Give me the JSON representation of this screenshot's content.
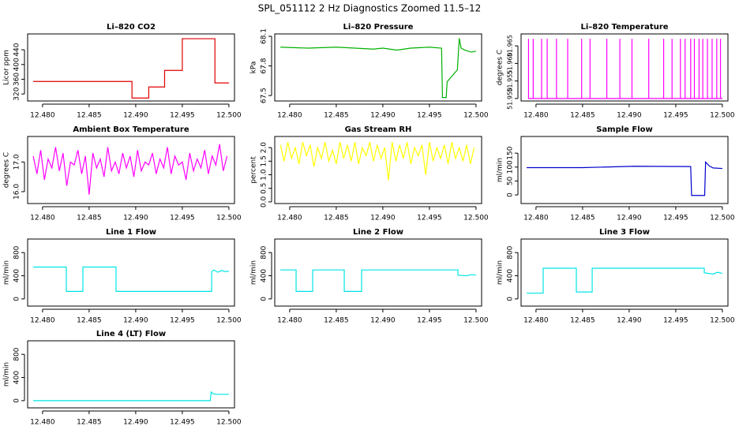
{
  "title": "SPL_051112  2 Hz Diagnostics Zoomed 11.5–12",
  "chart_data": [
    {
      "type": "line",
      "title": "Li–820 CO2",
      "ylabel": "Licor ppm",
      "color": "#e00000",
      "x": [
        12.479,
        12.4896,
        12.4896,
        12.4914,
        12.4914,
        12.4931,
        12.4931,
        12.495,
        12.495,
        12.4985,
        12.4985,
        12.5
      ],
      "values": [
        354,
        354,
        309,
        309,
        339,
        339,
        384,
        384,
        470,
        470,
        350,
        350
      ],
      "xlim": [
        12.4784,
        12.5006
      ],
      "xticks": [
        {
          "value": 12.48,
          "label": "12.480"
        },
        {
          "value": 12.485,
          "label": "12.485"
        },
        {
          "value": 12.49,
          "label": "12.490"
        },
        {
          "value": 12.495,
          "label": "12.495"
        },
        {
          "value": 12.5,
          "label": "12.500"
        }
      ],
      "ylim": [
        301,
        483
      ],
      "yticks": [
        320,
        360,
        400,
        440
      ]
    },
    {
      "type": "line",
      "title": "Li–820 Pressure",
      "ylabel": "kPa",
      "color": "#00b000",
      "x": [
        12.479,
        12.482,
        12.485,
        12.487,
        12.489,
        12.49,
        12.4915,
        12.493,
        12.495,
        12.4963,
        12.4964,
        12.4965,
        12.4968,
        12.4969,
        12.498,
        12.4982,
        12.4984,
        12.4988,
        12.4995,
        12.5
      ],
      "values": [
        67.99,
        67.98,
        67.99,
        67.98,
        67.97,
        67.98,
        67.96,
        67.98,
        67.99,
        67.98,
        67.48,
        67.48,
        67.48,
        67.64,
        67.76,
        68.08,
        67.98,
        67.96,
        67.94,
        67.95
      ],
      "xlim": [
        12.4784,
        12.5006
      ],
      "xticks": [
        {
          "value": 12.48,
          "label": "12.480"
        },
        {
          "value": 12.485,
          "label": "12.485"
        },
        {
          "value": 12.49,
          "label": "12.490"
        },
        {
          "value": 12.495,
          "label": "12.495"
        },
        {
          "value": 12.5,
          "label": "12.500"
        }
      ],
      "ylim": [
        67.445,
        68.124
      ],
      "yticks": [
        67.5,
        67.8,
        68.1
      ]
    },
    {
      "type": "line",
      "title": "Li–820 Temperature",
      "ylabel": "degrees C",
      "color": "#ff00ff",
      "x": [
        12.4792,
        12.4792,
        12.4792,
        12.4797,
        12.4797,
        12.4797,
        12.4806,
        12.4806,
        12.4806,
        12.4812,
        12.4812,
        12.4812,
        12.4822,
        12.4822,
        12.4822,
        12.4834,
        12.4834,
        12.4834,
        12.4849,
        12.4849,
        12.4849,
        12.4858,
        12.4858,
        12.4858,
        12.4876,
        12.4876,
        12.4876,
        12.489,
        12.489,
        12.489,
        12.4903,
        12.4903,
        12.4903,
        12.4921,
        12.4921,
        12.4921,
        12.4937,
        12.4937,
        12.4937,
        12.4946,
        12.4946,
        12.4946,
        12.4955,
        12.4955,
        12.4955,
        12.496,
        12.496,
        12.496,
        12.4966,
        12.4966,
        12.4966,
        12.497,
        12.497,
        12.497,
        12.4975,
        12.4975,
        12.4975,
        12.4979,
        12.4979,
        12.4979,
        12.4984,
        12.4984,
        12.4984,
        12.4989,
        12.4989,
        12.4989,
        12.4994,
        12.4994,
        12.4994,
        12.4998,
        12.4998,
        12.4998,
        12.5
      ],
      "values": [
        51.95,
        51.967,
        51.95,
        51.95,
        51.967,
        51.95,
        51.95,
        51.967,
        51.95,
        51.95,
        51.967,
        51.95,
        51.95,
        51.967,
        51.95,
        51.95,
        51.967,
        51.95,
        51.95,
        51.967,
        51.95,
        51.95,
        51.967,
        51.95,
        51.95,
        51.967,
        51.95,
        51.95,
        51.967,
        51.95,
        51.95,
        51.967,
        51.95,
        51.95,
        51.967,
        51.95,
        51.95,
        51.967,
        51.95,
        51.95,
        51.967,
        51.95,
        51.95,
        51.967,
        51.95,
        51.95,
        51.967,
        51.95,
        51.95,
        51.967,
        51.95,
        51.95,
        51.967,
        51.95,
        51.95,
        51.967,
        51.95,
        51.95,
        51.967,
        51.95,
        51.95,
        51.967,
        51.95,
        51.95,
        51.967,
        51.95,
        51.95,
        51.967,
        51.95,
        51.95,
        51.967,
        51.95,
        51.95
      ],
      "xlim": [
        12.4784,
        12.5006
      ],
      "xticks": [
        {
          "value": 12.48,
          "label": "12.480"
        },
        {
          "value": 12.485,
          "label": "12.485"
        },
        {
          "value": 12.49,
          "label": "12.490"
        },
        {
          "value": 12.495,
          "label": "12.495"
        },
        {
          "value": 12.5,
          "label": "12.500"
        }
      ],
      "ylim": [
        51.9493,
        51.9684
      ],
      "yticks": [
        {
          "value": 51.95,
          "label": "51.950"
        },
        51.955,
        {
          "value": 51.96,
          "label": "51.960"
        },
        51.965
      ]
    },
    {
      "type": "line",
      "title": "Ambient Box Temperature",
      "ylabel": "degrees C",
      "color": "#ff00ff",
      "x": [
        12.479,
        12.4794,
        12.4798,
        12.4802,
        12.4806,
        12.481,
        12.4814,
        12.4818,
        12.4822,
        12.4826,
        12.483,
        12.4834,
        12.4838,
        12.4842,
        12.4846,
        12.485,
        12.4854,
        12.4858,
        12.4862,
        12.4866,
        12.487,
        12.4874,
        12.4878,
        12.4882,
        12.4886,
        12.489,
        12.4894,
        12.4898,
        12.4902,
        12.4906,
        12.491,
        12.4914,
        12.4918,
        12.4922,
        12.4926,
        12.493,
        12.4934,
        12.4938,
        12.4942,
        12.4946,
        12.495,
        12.4954,
        12.4958,
        12.4962,
        12.4966,
        12.497,
        12.4974,
        12.4978,
        12.4982,
        12.4986,
        12.499,
        12.4994,
        12.4998
      ],
      "values": [
        17.2,
        16.6,
        17.4,
        16.4,
        17.1,
        16.8,
        17.5,
        16.7,
        17.3,
        16.2,
        17.0,
        16.9,
        17.4,
        16.6,
        17.2,
        15.9,
        17.3,
        16.8,
        17.1,
        16.5,
        17.5,
        16.7,
        17.0,
        16.6,
        17.3,
        16.8,
        17.2,
        16.5,
        17.4,
        16.7,
        17.0,
        16.9,
        17.3,
        16.6,
        17.1,
        16.8,
        17.5,
        16.6,
        17.2,
        16.9,
        17.0,
        16.4,
        17.3,
        16.7,
        17.1,
        16.8,
        17.4,
        16.6,
        17.2,
        16.9,
        17.6,
        16.7,
        17.2
      ],
      "xlim": [
        12.4784,
        12.5006
      ],
      "xticks": [
        {
          "value": 12.48,
          "label": "12.480"
        },
        {
          "value": 12.485,
          "label": "12.485"
        },
        {
          "value": 12.49,
          "label": "12.490"
        },
        {
          "value": 12.495,
          "label": "12.495"
        },
        {
          "value": 12.5,
          "label": "12.500"
        }
      ],
      "ylim": [
        15.6,
        17.86
      ],
      "yticks": [
        {
          "value": 16,
          "label": "16.0"
        },
        {
          "value": 17,
          "label": "17.0"
        }
      ]
    },
    {
      "type": "line",
      "title": "Gas Stream RH",
      "ylabel": "percent",
      "color": "#ffff00",
      "x": [
        12.479,
        12.4794,
        12.4798,
        12.4802,
        12.4806,
        12.481,
        12.4814,
        12.4818,
        12.4822,
        12.4826,
        12.483,
        12.4834,
        12.4838,
        12.4842,
        12.4846,
        12.485,
        12.4854,
        12.4858,
        12.4862,
        12.4866,
        12.487,
        12.4874,
        12.4878,
        12.4882,
        12.4886,
        12.489,
        12.4894,
        12.4898,
        12.4902,
        12.4906,
        12.491,
        12.4914,
        12.4918,
        12.4922,
        12.4926,
        12.493,
        12.4934,
        12.4938,
        12.4942,
        12.4946,
        12.495,
        12.4954,
        12.4958,
        12.4962,
        12.4966,
        12.497,
        12.4974,
        12.4978,
        12.4982,
        12.4986,
        12.499,
        12.4994,
        12.4998
      ],
      "values": [
        2.1,
        1.5,
        2.2,
        1.6,
        2.0,
        1.4,
        2.2,
        1.7,
        2.1,
        1.3,
        2.0,
        1.6,
        2.2,
        1.5,
        1.9,
        1.4,
        2.2,
        1.6,
        2.1,
        1.5,
        2.2,
        1.4,
        2.0,
        1.7,
        2.2,
        1.5,
        2.1,
        1.6,
        2.0,
        0.8,
        2.2,
        1.5,
        2.1,
        1.6,
        2.2,
        1.4,
        2.0,
        1.7,
        2.1,
        1.0,
        2.2,
        1.5,
        2.0,
        1.6,
        2.1,
        1.4,
        2.2,
        1.6,
        2.0,
        1.5,
        2.1,
        1.4,
        2.0
      ],
      "xlim": [
        12.4784,
        12.5006
      ],
      "xticks": [
        {
          "value": 12.48,
          "label": "12.480"
        },
        {
          "value": 12.485,
          "label": "12.485"
        },
        {
          "value": 12.49,
          "label": "12.490"
        },
        {
          "value": 12.495,
          "label": "12.495"
        },
        {
          "value": 12.5,
          "label": "12.500"
        }
      ],
      "ylim": [
        -0.06,
        2.41
      ],
      "yticks": [
        {
          "value": 0,
          "label": "0.0"
        },
        0.5,
        {
          "value": 1,
          "label": "1.0"
        },
        1.5,
        {
          "value": 2,
          "label": "2.0"
        }
      ]
    },
    {
      "type": "line",
      "title": "Sample Flow",
      "ylabel": "ml/min",
      "color": "#0000cc",
      "x": [
        12.479,
        12.485,
        12.4905,
        12.4966,
        12.4967,
        12.4981,
        12.4982,
        12.4986,
        12.499,
        12.5
      ],
      "values": [
        98,
        98,
        103,
        102,
        -2,
        -2,
        118,
        104,
        97,
        95
      ],
      "xlim": [
        12.4784,
        12.5006
      ],
      "xticks": [
        {
          "value": 12.48,
          "label": "12.480"
        },
        {
          "value": 12.485,
          "label": "12.485"
        },
        {
          "value": 12.49,
          "label": "12.490"
        },
        {
          "value": 12.495,
          "label": "12.495"
        },
        {
          "value": 12.5,
          "label": "12.500"
        }
      ],
      "ylim": [
        -31,
        210
      ],
      "yticks": [
        0,
        50,
        100,
        150
      ]
    },
    {
      "type": "line",
      "title": "Line 1 Flow",
      "ylabel": "ml/min",
      "color": "#00e5e5",
      "x": [
        12.479,
        12.48255,
        12.48255,
        12.48433,
        12.48433,
        12.48789,
        12.48789,
        12.49815,
        12.49815,
        12.4984,
        12.4988,
        12.4992,
        12.4996,
        12.5
      ],
      "values": [
        550,
        550,
        130,
        130,
        550,
        550,
        130,
        130,
        470,
        500,
        460,
        490,
        470,
        480
      ],
      "xlim": [
        12.4784,
        12.5006
      ],
      "xticks": [
        {
          "value": 12.48,
          "label": "12.480"
        },
        {
          "value": 12.485,
          "label": "12.485"
        },
        {
          "value": 12.49,
          "label": "12.490"
        },
        {
          "value": 12.495,
          "label": "12.495"
        },
        {
          "value": 12.5,
          "label": "12.500"
        }
      ],
      "ylim": [
        -124,
        1034
      ],
      "yticks": [
        0,
        400,
        800
      ]
    },
    {
      "type": "line",
      "title": "Line 2 Flow",
      "ylabel": "ml/min",
      "color": "#00e5e5",
      "x": [
        12.479,
        12.48069,
        12.48069,
        12.48247,
        12.48247,
        12.48586,
        12.48586,
        12.48772,
        12.48772,
        12.49806,
        12.49806,
        12.499,
        12.4995,
        12.5
      ],
      "values": [
        500,
        500,
        130,
        130,
        500,
        500,
        130,
        130,
        500,
        500,
        410,
        400,
        420,
        410
      ],
      "xlim": [
        12.4784,
        12.5006
      ],
      "xticks": [
        {
          "value": 12.48,
          "label": "12.480"
        },
        {
          "value": 12.485,
          "label": "12.485"
        },
        {
          "value": 12.49,
          "label": "12.490"
        },
        {
          "value": 12.495,
          "label": "12.495"
        },
        {
          "value": 12.5,
          "label": "12.500"
        }
      ],
      "ylim": [
        -124,
        1034
      ],
      "yticks": [
        0,
        400,
        800
      ]
    },
    {
      "type": "line",
      "title": "Line 3 Flow",
      "ylabel": "ml/min",
      "color": "#00e5e5",
      "x": [
        12.479,
        12.48077,
        12.48077,
        12.48433,
        12.48433,
        12.48603,
        12.48603,
        12.49806,
        12.49806,
        12.499,
        12.4995,
        12.5
      ],
      "values": [
        100,
        100,
        530,
        530,
        120,
        120,
        530,
        530,
        450,
        430,
        460,
        440
      ],
      "xlim": [
        12.4784,
        12.5006
      ],
      "xticks": [
        {
          "value": 12.48,
          "label": "12.480"
        },
        {
          "value": 12.485,
          "label": "12.485"
        },
        {
          "value": 12.49,
          "label": "12.490"
        },
        {
          "value": 12.495,
          "label": "12.495"
        },
        {
          "value": 12.5,
          "label": "12.500"
        }
      ],
      "ylim": [
        -124,
        1034
      ],
      "yticks": [
        0,
        400,
        800
      ]
    },
    {
      "type": "line",
      "title": "Line 4 (LT) Flow",
      "ylabel": "ml/min",
      "color": "#00e5e5",
      "x": [
        12.479,
        12.498,
        12.4981,
        12.4983,
        12.4986,
        12.5
      ],
      "values": [
        0,
        0,
        150,
        120,
        110,
        110
      ],
      "xlim": [
        12.4784,
        12.5006
      ],
      "xticks": [
        {
          "value": 12.48,
          "label": "12.480"
        },
        {
          "value": 12.485,
          "label": "12.485"
        },
        {
          "value": 12.49,
          "label": "12.490"
        },
        {
          "value": 12.495,
          "label": "12.495"
        },
        {
          "value": 12.5,
          "label": "12.500"
        }
      ],
      "ylim": [
        -124,
        1034
      ],
      "yticks": [
        0,
        400,
        800
      ]
    }
  ]
}
